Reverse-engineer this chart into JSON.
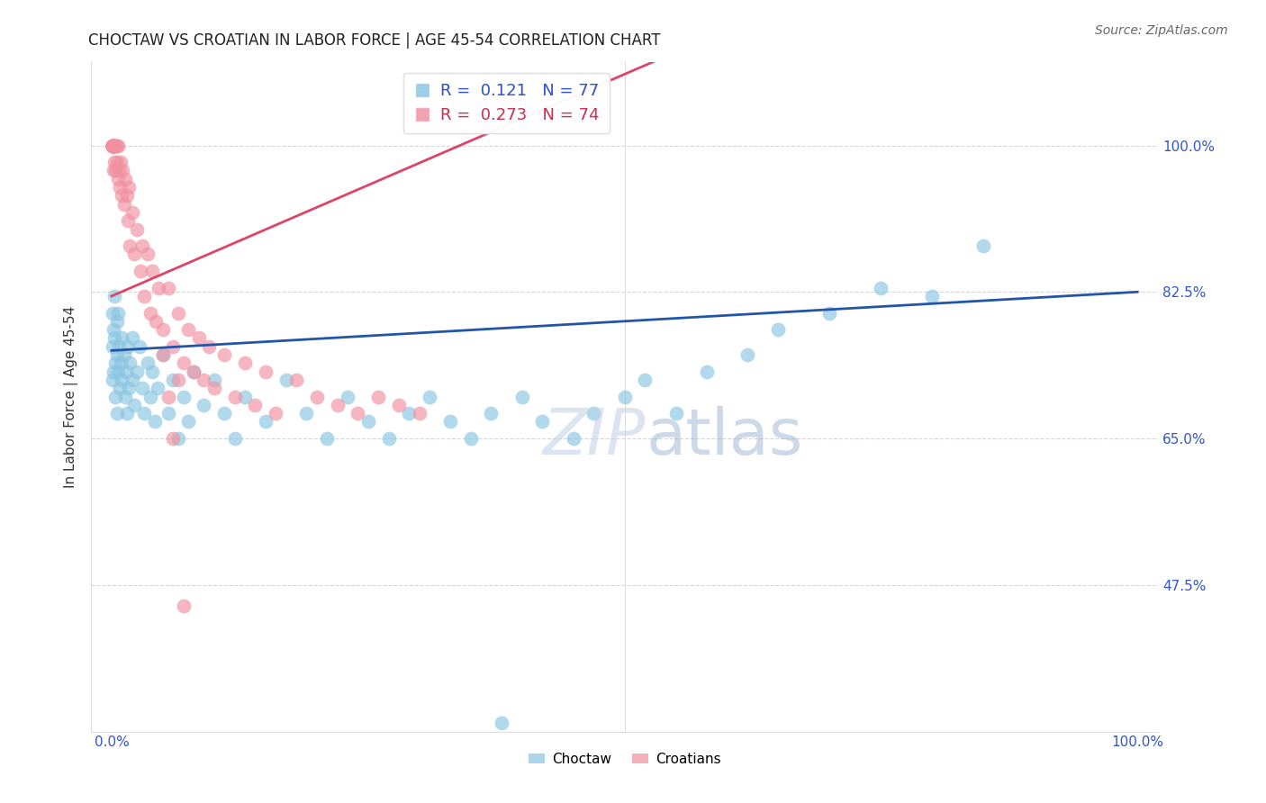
{
  "title": "CHOCTAW VS CROATIAN IN LABOR FORCE | AGE 45-54 CORRELATION CHART",
  "source": "Source: ZipAtlas.com",
  "ylabel": "In Labor Force | Age 45-54",
  "choctaw_R": 0.121,
  "choctaw_N": 77,
  "croatian_R": 0.273,
  "croatian_N": 74,
  "choctaw_color": "#89c4e1",
  "croatian_color": "#f090a0",
  "trend_choctaw_color": "#2255aa",
  "trend_croatian_color": "#dd4466",
  "background_color": "#ffffff",
  "grid_color": "#cccccc",
  "ytick_color": "#3355cc",
  "xtick_color": "#3355cc",
  "xlim": [
    -0.02,
    1.02
  ],
  "ylim": [
    0.3,
    1.1
  ],
  "yticks": [
    0.475,
    0.65,
    0.825,
    1.0
  ],
  "ytick_labels": [
    "47.5%",
    "65.0%",
    "82.5%",
    "100.0%"
  ],
  "xticks": [
    0.0,
    0.2,
    0.4,
    0.6,
    0.8,
    1.0
  ],
  "xtick_labels": [
    "0.0%",
    "",
    "",
    "",
    "",
    "100.0%"
  ],
  "choctaw_x": [
    0.001,
    0.001,
    0.001,
    0.002,
    0.002,
    0.003,
    0.003,
    0.004,
    0.004,
    0.005,
    0.005,
    0.005,
    0.006,
    0.006,
    0.007,
    0.008,
    0.009,
    0.01,
    0.01,
    0.012,
    0.013,
    0.014,
    0.015,
    0.016,
    0.017,
    0.018,
    0.02,
    0.02,
    0.022,
    0.025,
    0.027,
    0.03,
    0.032,
    0.035,
    0.038,
    0.04,
    0.042,
    0.045,
    0.05,
    0.055,
    0.06,
    0.065,
    0.07,
    0.075,
    0.08,
    0.09,
    0.1,
    0.11,
    0.12,
    0.13,
    0.15,
    0.17,
    0.19,
    0.21,
    0.23,
    0.25,
    0.27,
    0.29,
    0.31,
    0.33,
    0.35,
    0.37,
    0.4,
    0.42,
    0.45,
    0.47,
    0.5,
    0.52,
    0.55,
    0.58,
    0.62,
    0.65,
    0.7,
    0.75,
    0.8,
    0.85,
    0.38
  ],
  "choctaw_y": [
    0.8,
    0.76,
    0.72,
    0.78,
    0.73,
    0.77,
    0.82,
    0.74,
    0.7,
    0.79,
    0.75,
    0.68,
    0.8,
    0.73,
    0.76,
    0.71,
    0.74,
    0.77,
    0.72,
    0.75,
    0.7,
    0.73,
    0.68,
    0.76,
    0.71,
    0.74,
    0.72,
    0.77,
    0.69,
    0.73,
    0.76,
    0.71,
    0.68,
    0.74,
    0.7,
    0.73,
    0.67,
    0.71,
    0.75,
    0.68,
    0.72,
    0.65,
    0.7,
    0.67,
    0.73,
    0.69,
    0.72,
    0.68,
    0.65,
    0.7,
    0.67,
    0.72,
    0.68,
    0.65,
    0.7,
    0.67,
    0.65,
    0.68,
    0.7,
    0.67,
    0.65,
    0.68,
    0.7,
    0.67,
    0.65,
    0.68,
    0.7,
    0.72,
    0.68,
    0.73,
    0.75,
    0.78,
    0.8,
    0.83,
    0.82,
    0.88,
    0.31
  ],
  "croatian_x": [
    0.001,
    0.001,
    0.001,
    0.001,
    0.001,
    0.001,
    0.001,
    0.001,
    0.001,
    0.001,
    0.001,
    0.002,
    0.002,
    0.002,
    0.002,
    0.003,
    0.003,
    0.004,
    0.004,
    0.005,
    0.005,
    0.006,
    0.006,
    0.007,
    0.008,
    0.009,
    0.01,
    0.011,
    0.012,
    0.013,
    0.015,
    0.016,
    0.017,
    0.018,
    0.02,
    0.022,
    0.025,
    0.028,
    0.03,
    0.032,
    0.035,
    0.038,
    0.04,
    0.043,
    0.046,
    0.05,
    0.055,
    0.06,
    0.065,
    0.07,
    0.075,
    0.08,
    0.085,
    0.09,
    0.095,
    0.1,
    0.11,
    0.12,
    0.13,
    0.14,
    0.15,
    0.16,
    0.18,
    0.2,
    0.22,
    0.24,
    0.26,
    0.28,
    0.3,
    0.05,
    0.055,
    0.06,
    0.065,
    0.07
  ],
  "croatian_y": [
    1.0,
    1.0,
    1.0,
    1.0,
    1.0,
    1.0,
    1.0,
    1.0,
    1.0,
    1.0,
    1.0,
    1.0,
    1.0,
    1.0,
    0.97,
    1.0,
    0.98,
    1.0,
    0.97,
    1.0,
    0.98,
    0.96,
    1.0,
    0.97,
    0.95,
    0.98,
    0.94,
    0.97,
    0.93,
    0.96,
    0.94,
    0.91,
    0.95,
    0.88,
    0.92,
    0.87,
    0.9,
    0.85,
    0.88,
    0.82,
    0.87,
    0.8,
    0.85,
    0.79,
    0.83,
    0.78,
    0.83,
    0.76,
    0.8,
    0.74,
    0.78,
    0.73,
    0.77,
    0.72,
    0.76,
    0.71,
    0.75,
    0.7,
    0.74,
    0.69,
    0.73,
    0.68,
    0.72,
    0.7,
    0.69,
    0.68,
    0.7,
    0.69,
    0.68,
    0.75,
    0.7,
    0.65,
    0.72,
    0.45
  ]
}
